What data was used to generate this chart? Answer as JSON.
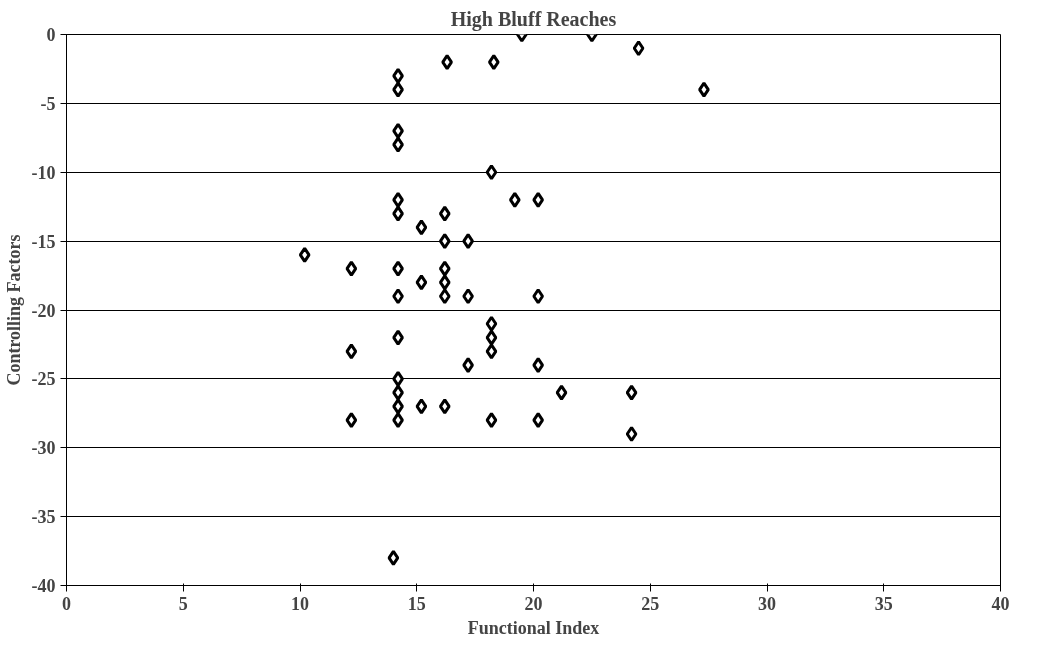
{
  "chart_data": {
    "type": "scatter",
    "title": "High Bluff Reaches",
    "xlabel": "Functional Index",
    "ylabel": "Controlling Factors",
    "x": [
      19.5,
      22.5,
      24.5,
      27.3,
      16.3,
      18.3,
      14.2,
      14.2,
      14.2,
      14.2,
      18.2,
      19.2,
      20.2,
      14.2,
      14.2,
      16.2,
      15.2,
      16.2,
      17.2,
      10.2,
      12.2,
      14.2,
      16.2,
      15.2,
      16.2,
      14.2,
      16.2,
      17.2,
      20.2,
      18.2,
      18.2,
      18.2,
      14.2,
      12.2,
      17.2,
      20.2,
      14.2,
      21.2,
      24.2,
      14.2,
      14.2,
      15.2,
      16.2,
      14.2,
      12.2,
      18.2,
      20.2,
      24.2,
      14.0
    ],
    "values": [
      0,
      0,
      -1,
      -4,
      -2,
      -2,
      -3,
      -4,
      -7,
      -8,
      -10,
      -12,
      -12,
      -12,
      -13,
      -13,
      -14,
      -15,
      -15,
      -16,
      -17,
      -17,
      -17,
      -18,
      -18,
      -19,
      -19,
      -19,
      -19,
      -21,
      -22,
      -23,
      -22,
      -23,
      -24,
      -24,
      -25,
      -26,
      -26,
      -26,
      -27,
      -27,
      -27,
      -28,
      -28,
      -28,
      -28,
      -29,
      -38
    ],
    "color": "#000000",
    "marker": "diamond",
    "xlim": [
      0,
      40
    ],
    "ylim": [
      -40,
      0
    ],
    "xticks": [
      0,
      5,
      10,
      15,
      20,
      25,
      30,
      35,
      40
    ],
    "yticks": [
      -40,
      -35,
      -30,
      -25,
      -20,
      -15,
      -10,
      -5,
      0
    ],
    "grid": "y"
  }
}
